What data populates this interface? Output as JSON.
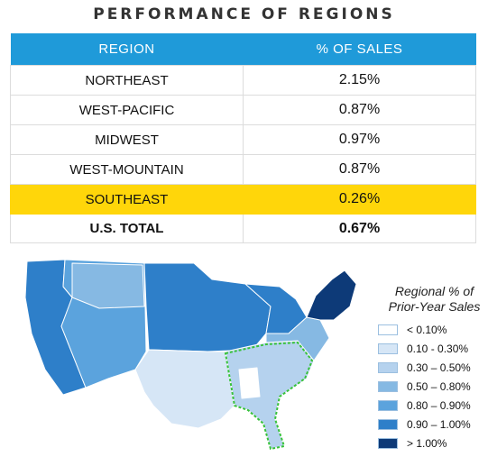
{
  "title": "PERFORMANCE OF REGIONS",
  "table": {
    "headers": [
      "REGION",
      "% OF SALES"
    ],
    "rows": [
      {
        "region": "NORTHEAST",
        "value": "2.15%"
      },
      {
        "region": "WEST-PACIFIC",
        "value": "0.87%"
      },
      {
        "region": "MIDWEST",
        "value": "0.97%"
      },
      {
        "region": "WEST-MOUNTAIN",
        "value": "0.87%"
      },
      {
        "region": "SOUTHEAST",
        "value": "0.26%"
      },
      {
        "region": "U.S. TOTAL",
        "value": "0.67%"
      }
    ],
    "highlight_row": "SOUTHEAST",
    "total_row": "U.S. TOTAL",
    "header_color": "#1f9ad9",
    "highlight_color": "#ffd60a"
  },
  "legend": {
    "title_line1": "Regional % of",
    "title_line2": "Prior-Year Sales",
    "items": [
      {
        "label": "< 0.10%",
        "color": "#ffffff"
      },
      {
        "label": "0.10 - 0.30%",
        "color": "#d6e6f6"
      },
      {
        "label": "0.30 – 0.50%",
        "color": "#b5d2ee"
      },
      {
        "label": "0.50 – 0.80%",
        "color": "#86b9e3"
      },
      {
        "label": "0.80 – 0.90%",
        "color": "#5ba3dd"
      },
      {
        "label": "0.90 – 1.00%",
        "color": "#2e7fc9"
      },
      {
        "label": "> 1.00%",
        "color": "#0d3a78"
      }
    ]
  },
  "chart_data": [
    {
      "type": "table",
      "title": "PERFORMANCE OF REGIONS",
      "columns": [
        "REGION",
        "% OF SALES"
      ],
      "categories": [
        "NORTHEAST",
        "WEST-PACIFIC",
        "MIDWEST",
        "WEST-MOUNTAIN",
        "SOUTHEAST",
        "U.S. TOTAL"
      ],
      "values": [
        2.15,
        0.87,
        0.97,
        0.87,
        0.26,
        0.67
      ]
    },
    {
      "type": "heatmap",
      "subtype": "choropleth",
      "legend_title": "Regional % of Prior-Year Sales",
      "bins": [
        "< 0.10%",
        "0.10 - 0.30%",
        "0.30 – 0.50%",
        "0.50 – 0.80%",
        "0.80 – 0.90%",
        "0.90 – 1.00%",
        "> 1.00%"
      ],
      "legend_position": "right",
      "highlighted_region_outline_color": "#38c23a"
    }
  ]
}
